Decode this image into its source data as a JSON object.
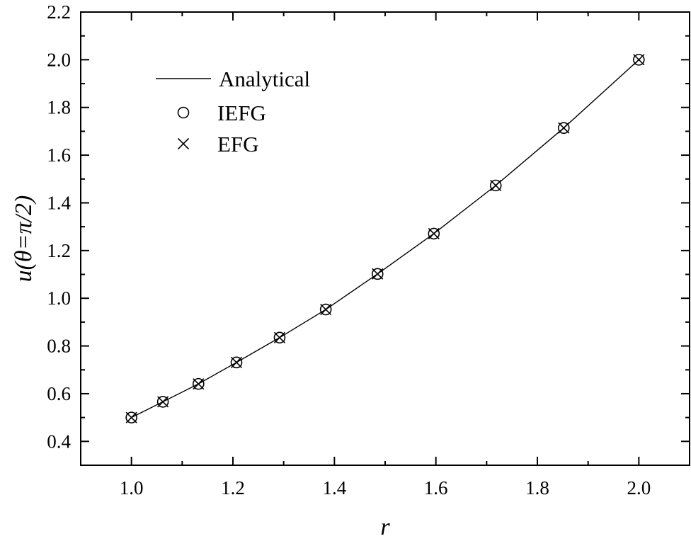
{
  "chart_data": {
    "type": "line",
    "xlabel": "r",
    "ylabel": "u(θ=π/2)",
    "xlim": [
      0.9,
      2.1
    ],
    "ylim": [
      0.3,
      2.2
    ],
    "x_ticks": [
      "1.0",
      "1.2",
      "1.4",
      "1.6",
      "1.8",
      "2.0"
    ],
    "y_ticks": [
      "0.4",
      "0.6",
      "0.8",
      "1.0",
      "1.2",
      "1.4",
      "1.6",
      "1.8",
      "2.0",
      "2.2"
    ],
    "grid": false,
    "legend_position": "top-left",
    "series": [
      {
        "name": "Analytical",
        "style": "line",
        "x": [
          1.0,
          1.062,
          1.132,
          1.207,
          1.292,
          1.383,
          1.485,
          1.596,
          1.718,
          1.852,
          2.0
        ],
        "values": [
          0.5,
          0.566,
          0.641,
          0.731,
          0.835,
          0.953,
          1.102,
          1.271,
          1.473,
          1.714,
          2.0
        ]
      },
      {
        "name": "IEFG",
        "style": "marker-circle",
        "x": [
          1.0,
          1.062,
          1.132,
          1.207,
          1.292,
          1.383,
          1.485,
          1.596,
          1.718,
          1.852,
          2.0
        ],
        "values": [
          0.5,
          0.566,
          0.641,
          0.731,
          0.835,
          0.953,
          1.102,
          1.271,
          1.473,
          1.714,
          2.0
        ]
      },
      {
        "name": "EFG",
        "style": "marker-cross",
        "x": [
          1.0,
          1.062,
          1.132,
          1.207,
          1.292,
          1.383,
          1.485,
          1.596,
          1.718,
          1.852,
          2.0
        ],
        "values": [
          0.5,
          0.566,
          0.641,
          0.731,
          0.835,
          0.953,
          1.102,
          1.271,
          1.473,
          1.714,
          2.0
        ]
      }
    ]
  }
}
